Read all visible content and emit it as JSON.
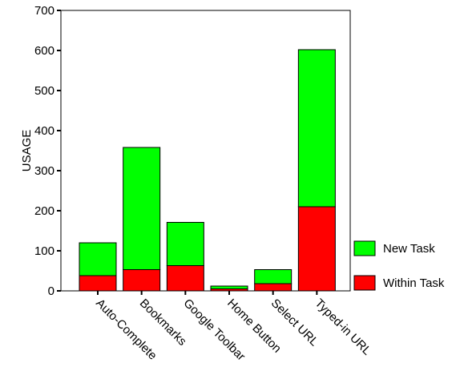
{
  "chart_data": {
    "type": "bar",
    "stacked": true,
    "categories": [
      "Auto-Complete",
      "Bookmarks",
      "Google Toolbar",
      "Home Button",
      "Select URL",
      "Typed-in URL"
    ],
    "series": [
      {
        "name": "Within Task",
        "color": "#ff0000",
        "values": [
          38,
          53,
          63,
          5,
          18,
          210
        ]
      },
      {
        "name": "New Task",
        "color": "#00ff00",
        "values": [
          82,
          305,
          108,
          7,
          35,
          392
        ]
      }
    ],
    "ylabel": "USAGE",
    "xlabel": "",
    "ylim": [
      0,
      700
    ],
    "yticks": [
      0,
      100,
      200,
      300,
      400,
      500,
      600,
      700
    ],
    "grid": false,
    "legend": {
      "placement": "right",
      "order": [
        "New Task",
        "Within Task"
      ]
    }
  }
}
